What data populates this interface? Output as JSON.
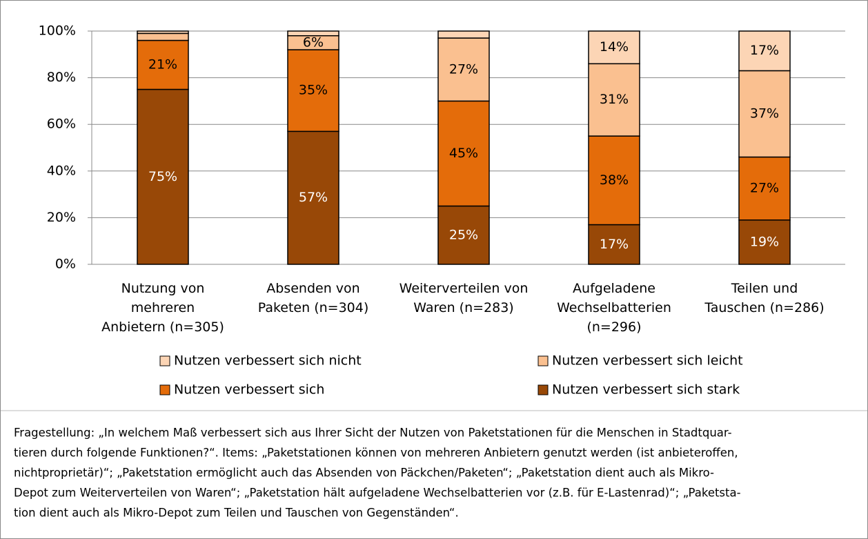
{
  "chart_data": {
    "type": "stacked_bar",
    "categories": [
      "Nutzung von\nmehreren\nAnbietern (n=305)",
      "Absenden von\nPaketen (n=304)",
      "Weiterverteilen von\nWaren (n=283)",
      "Aufgeladene\nWechselbatterien\n(n=296)",
      "Teilen und\nTauschen (n=286)"
    ],
    "series": [
      {
        "name": "Nutzen verbessert sich stark",
        "color": "#984807",
        "values": [
          75,
          57,
          25,
          17,
          19
        ],
        "value_labels": [
          "75%",
          "57%",
          "25%",
          "17%",
          "19%"
        ]
      },
      {
        "name": "Nutzen verbessert sich",
        "color": "#e46c0a",
        "values": [
          21,
          35,
          45,
          38,
          27
        ],
        "value_labels": [
          "21%",
          "35%",
          "45%",
          "38%",
          "27%"
        ]
      },
      {
        "name": "Nutzen verbessert sich leicht",
        "color": "#fac090",
        "values": [
          3,
          6,
          27,
          31,
          37
        ],
        "value_labels": [
          null,
          "6%",
          "27%",
          "31%",
          "37%"
        ]
      },
      {
        "name": "Nutzen verbessert sich nicht",
        "color": "#fcd5b5",
        "values": [
          1,
          2,
          3,
          14,
          17
        ],
        "value_labels": [
          null,
          null,
          null,
          "14%",
          "17%"
        ]
      }
    ],
    "ylim": [
      0,
      100
    ],
    "yticks": [
      {
        "value": 0,
        "label": "0%"
      },
      {
        "value": 20,
        "label": "20%"
      },
      {
        "value": 40,
        "label": "40%"
      },
      {
        "value": 60,
        "label": "60%"
      },
      {
        "value": 80,
        "label": "80%"
      },
      {
        "value": 100,
        "label": "100%"
      }
    ],
    "grid": true,
    "caption_lines": [
      "Fragestellung: „In welchem Maß verbessert sich aus Ihrer Sicht der Nutzen von Paketstationen für die Menschen in Stadtquar-",
      "tieren durch folgende Funktionen?“. Items: „Paketstationen können von mehreren Anbietern genutzt werden (ist anbieteroffen,",
      "nichtproprietär)“; „Paketstation ermöglicht auch das Absenden von Päckchen/Paketen“; „Paketstation dient auch als Mikro-",
      "Depot zum Weiterverteilen von Waren“; „Paketstation hält aufgeladene Wechselbatterien vor (z.B. für E-Lastenrad)“; „Paketsta-",
      "tion dient auch als Mikro-Depot zum Teilen und Tauschen von Gegenständen“."
    ]
  }
}
